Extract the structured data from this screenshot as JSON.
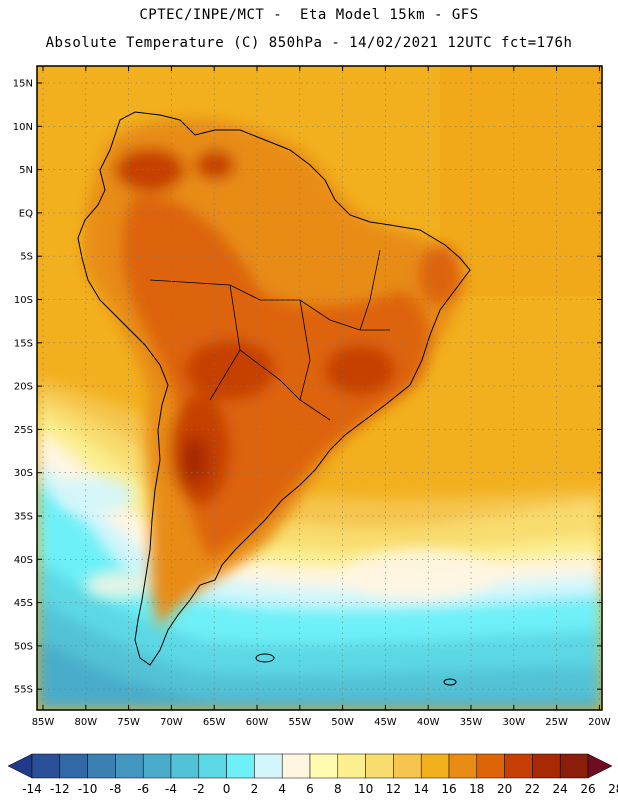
{
  "header": {
    "line1": "CPTEC/INPE/MCT -  Eta Model 15km - GFS",
    "line2": "Absolute Temperature (C) 850hPa - 14/02/2021 12UTC fct=176h"
  },
  "map": {
    "lat_labels": [
      "15N",
      "10N",
      "5N",
      "EQ",
      "5S",
      "10S",
      "15S",
      "20S",
      "25S",
      "30S",
      "35S",
      "40S",
      "45S",
      "50S",
      "55S"
    ],
    "lon_labels": [
      "85W",
      "80W",
      "75W",
      "70W",
      "65W",
      "60W",
      "55W",
      "50W",
      "45W",
      "40W",
      "35W",
      "30W",
      "25W",
      "20W"
    ],
    "grid": "dotted"
  },
  "colorbar": {
    "labels": [
      "-14",
      "-12",
      "-10",
      "-8",
      "-6",
      "-4",
      "-2",
      "0",
      "2",
      "4",
      "6",
      "8",
      "10",
      "12",
      "14",
      "16",
      "18",
      "20",
      "22",
      "24",
      "26",
      "28"
    ],
    "colors": [
      "#203a8a",
      "#2a5198",
      "#3268a6",
      "#3a80b2",
      "#4396bf",
      "#4aacca",
      "#52c2d6",
      "#5cd8e4",
      "#6ef0f8",
      "#d2f6fc",
      "#fff6e2",
      "#fffbb0",
      "#fbef90",
      "#f8dc6e",
      "#f5c54e",
      "#f2b01e",
      "#e88c14",
      "#de6408",
      "#c64006",
      "#a82a04",
      "#8a1e08",
      "#700c20"
    ]
  }
}
